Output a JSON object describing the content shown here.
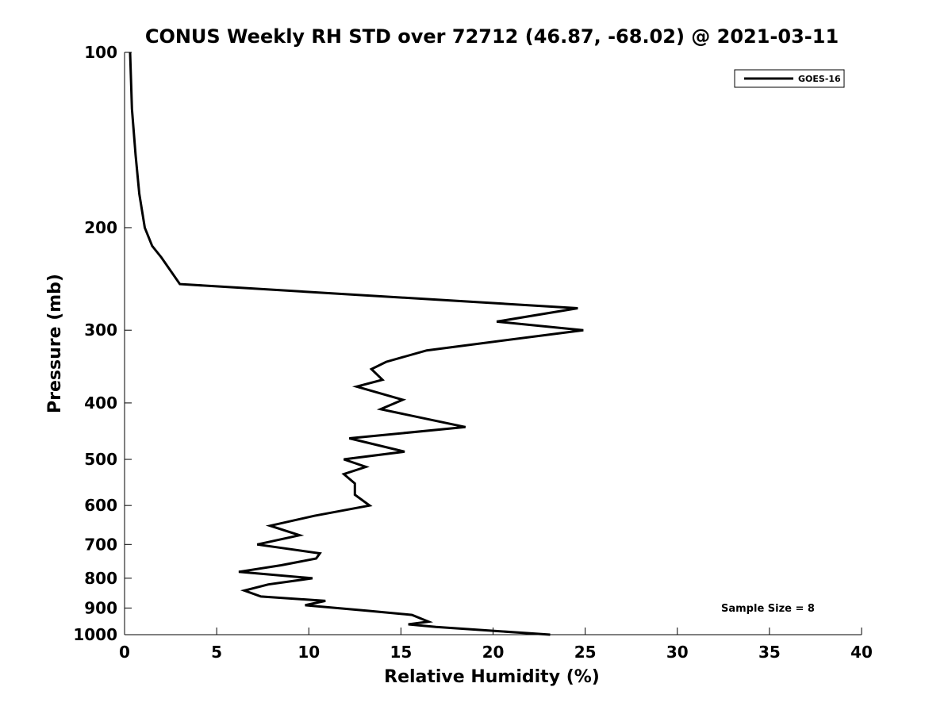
{
  "chart_data": {
    "type": "line",
    "title": "CONUS Weekly RH STD over 72712 (46.87, -68.02) @ 2021-03-11",
    "xlabel": "Relative Humidity (%)",
    "ylabel": "Pressure (mb)",
    "xlim": [
      0,
      40
    ],
    "ylim": [
      100,
      1000
    ],
    "yscale": "log",
    "y_reversed": true,
    "x_ticks": [
      0,
      5,
      10,
      15,
      20,
      25,
      30,
      35,
      40
    ],
    "x_tick_labels": [
      "0",
      "5",
      "10",
      "15",
      "20",
      "25",
      "30",
      "35",
      "40"
    ],
    "y_ticks": [
      100,
      200,
      300,
      400,
      500,
      600,
      700,
      800,
      900,
      1000
    ],
    "y_tick_labels": [
      "100",
      "200",
      "300",
      "400",
      "500",
      "600",
      "700",
      "800",
      "900",
      "1000"
    ],
    "grid": false,
    "legend_position": "top-right",
    "series": [
      {
        "name": "GOES-16",
        "color": "#000000",
        "x": [
          0.3,
          0.4,
          0.6,
          0.8,
          1.1,
          1.5,
          2.0,
          3.0,
          24.6,
          20.2,
          24.9,
          16.4,
          14.2,
          13.4,
          14.0,
          12.6,
          15.1,
          13.9,
          18.5,
          12.2,
          15.2,
          11.9,
          13.1,
          11.9,
          12.5,
          12.5,
          13.3,
          10.3,
          7.9,
          9.5,
          7.2,
          10.6,
          10.4,
          8.5,
          6.2,
          10.2,
          7.8,
          6.5,
          7.4,
          10.9,
          9.8,
          13.2,
          15.6,
          16.5,
          15.4,
          16.9,
          23.1
        ],
        "y": [
          100,
          125,
          150,
          175,
          200,
          215,
          225,
          250,
          275,
          290,
          300,
          325,
          340,
          350,
          365,
          375,
          395,
          410,
          440,
          460,
          485,
          500,
          515,
          530,
          550,
          575,
          600,
          625,
          650,
          675,
          700,
          725,
          740,
          760,
          780,
          800,
          820,
          840,
          860,
          875,
          890,
          910,
          925,
          950,
          960,
          970,
          1000
        ]
      }
    ],
    "annotation": "Sample Size = 8"
  }
}
